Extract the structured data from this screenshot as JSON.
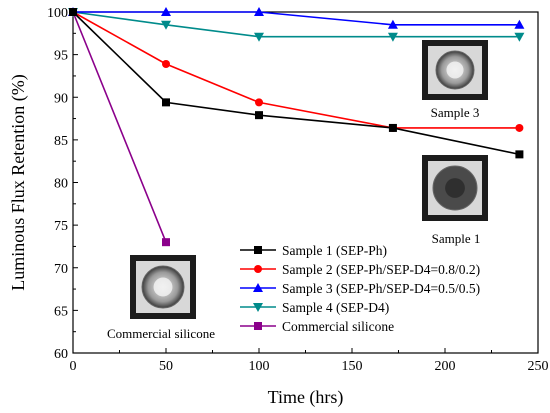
{
  "chart_data": {
    "type": "line",
    "xlabel": "Time (hrs)",
    "ylabel": "Luminous Flux Retention (%)",
    "xlim": [
      0,
      250
    ],
    "ylim": [
      60,
      100
    ],
    "xticks": [
      0,
      50,
      100,
      150,
      200,
      250
    ],
    "yticks": [
      60,
      65,
      70,
      75,
      80,
      85,
      90,
      95,
      100
    ],
    "grid": false,
    "legend_position": "lower-right",
    "series": [
      {
        "name": "Sample 1 (SEP-Ph)",
        "color": "#000000",
        "marker": "square",
        "x": [
          0,
          50,
          100,
          172,
          240
        ],
        "y": [
          100,
          89.4,
          87.9,
          86.4,
          83.3
        ]
      },
      {
        "name": "Sample 2 (SEP-Ph/SEP-D4=0.8/0.2)",
        "color": "#ff0000",
        "marker": "circle",
        "x": [
          0,
          50,
          100,
          172,
          240
        ],
        "y": [
          100,
          93.9,
          89.4,
          86.4,
          86.4
        ]
      },
      {
        "name": "Sample 3 (SEP-Ph/SEP-D4=0.5/0.5)",
        "color": "#0000ff",
        "marker": "triangle-up",
        "x": [
          0,
          50,
          100,
          172,
          240
        ],
        "y": [
          100,
          100,
          100,
          98.5,
          98.5
        ]
      },
      {
        "name": "Sample 4 (SEP-D4)",
        "color": "#008b8b",
        "marker": "triangle-down",
        "x": [
          0,
          50,
          100,
          172,
          240
        ],
        "y": [
          100,
          98.5,
          97.1,
          97.1,
          97.1
        ]
      },
      {
        "name": "Commercial silicone",
        "color": "#8b008b",
        "marker": "square",
        "x": [
          0,
          50
        ],
        "y": [
          100,
          73.0
        ]
      }
    ],
    "annotations": [
      {
        "id": "sample3",
        "label": "Sample 3",
        "image": "LED package photo"
      },
      {
        "id": "sample1",
        "label": "Sample 1",
        "image": "LED package photo"
      },
      {
        "id": "commercial",
        "label": "Commercial silicone",
        "image": "LED package photo"
      }
    ]
  }
}
